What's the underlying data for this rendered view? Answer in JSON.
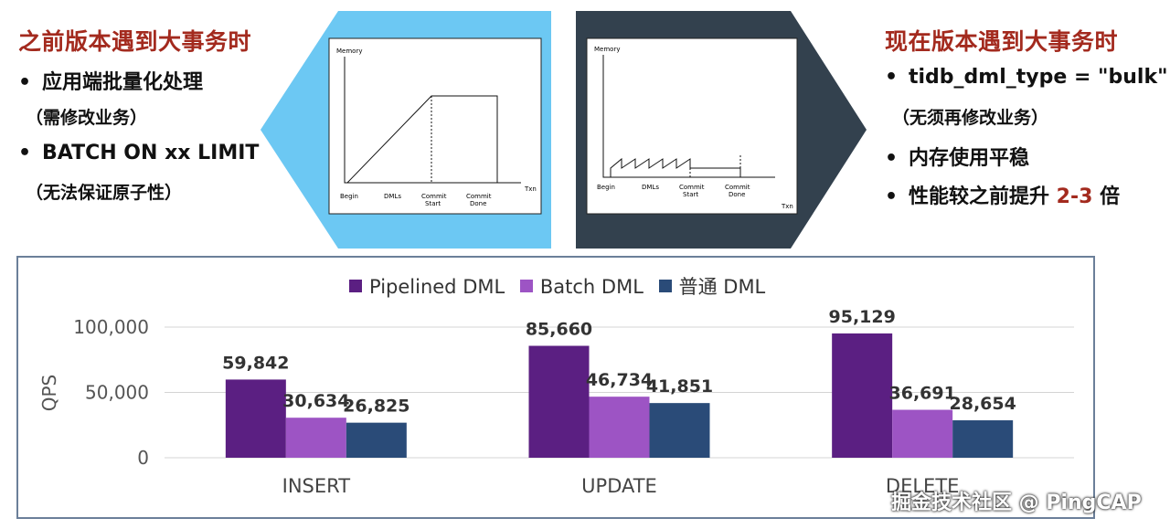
{
  "left_panel": {
    "heading": "之前版本遇到大事务时",
    "bullets": [
      {
        "main": "应用端批量化处理",
        "sub": "（需修改业务）"
      },
      {
        "main": "BATCH ON xx LIMIT",
        "sub": "（无法保证原子性）"
      }
    ],
    "diagram": {
      "ylabel": "Memory",
      "xlabel": "Txn",
      "ticks": [
        "Begin",
        "DMLs",
        "Commit",
        "Start",
        "Commit",
        "Done"
      ]
    },
    "colors": {
      "bg": "#6cc8f3"
    }
  },
  "right_panel": {
    "heading": "现在版本遇到大事务时",
    "bullets": [
      {
        "main": "tidb_dml_type = \"bulk\"",
        "sub": "（无须再修改业务）"
      },
      {
        "main": "内存使用平稳",
        "sub": ""
      },
      {
        "main_prefix": "性能较之前提升 ",
        "main_accent": "2-3",
        "main_suffix": " 倍"
      }
    ],
    "diagram": {
      "ylabel": "Memory",
      "xlabel": "Txn",
      "ticks": [
        "Begin",
        "DMLs",
        "Commit",
        "Start",
        "Commit",
        "Done"
      ]
    },
    "colors": {
      "bg": "#33414e"
    }
  },
  "bullet_char": "•",
  "chart_data": {
    "type": "bar",
    "categories": [
      "INSERT",
      "UPDATE",
      "DELETE"
    ],
    "series": [
      {
        "name": "Pipelined DML",
        "values": [
          59842,
          85660,
          95129
        ],
        "labels": [
          "59,842",
          "85,660",
          "95,129"
        ],
        "color": "#5b1f82"
      },
      {
        "name": "Batch DML",
        "values": [
          30634,
          46734,
          36691
        ],
        "labels": [
          "30,634",
          "46,734",
          "36,691"
        ],
        "color": "#9d54c4"
      },
      {
        "name": "普通 DML",
        "values": [
          26825,
          41851,
          28654
        ],
        "labels": [
          "26,825",
          "41,851",
          "28,654"
        ],
        "color": "#2a4b78"
      }
    ],
    "ylabel": "QPS",
    "yticks": [
      "0",
      "50,000",
      "100,000"
    ],
    "ytick_values": [
      0,
      50000,
      100000
    ],
    "ylim": [
      0,
      100000
    ],
    "grid": true,
    "legend": "top-center"
  },
  "watermark": "掘金技术社区 @ PingCAP"
}
